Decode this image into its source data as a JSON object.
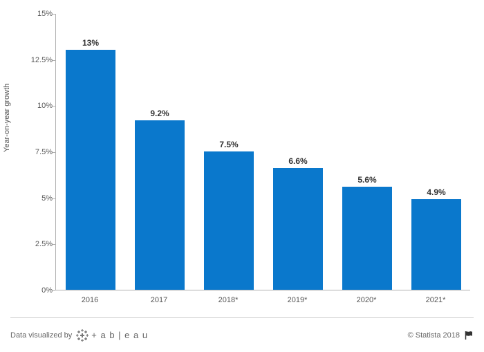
{
  "chart": {
    "type": "bar",
    "y_axis_label": "Year-on-year growth",
    "categories": [
      "2016",
      "2017",
      "2018*",
      "2019*",
      "2020*",
      "2021*"
    ],
    "values": [
      13,
      9.2,
      7.5,
      6.6,
      5.6,
      4.9
    ],
    "value_labels": [
      "13%",
      "9.2%",
      "7.5%",
      "6.6%",
      "5.6%",
      "4.9%"
    ],
    "bar_color": "#0a78cc",
    "ylim": [
      0,
      15
    ],
    "ytick_step": 2.5,
    "y_ticks": [
      "0%",
      "2.5%",
      "5%",
      "7.5%",
      "10%",
      "12.5%",
      "15%"
    ],
    "y_tick_values": [
      0,
      2.5,
      5,
      7.5,
      10,
      12.5,
      15
    ],
    "bar_width_ratio": 0.72,
    "background_color": "#ffffff",
    "axis_color": "#b0b0b0",
    "label_fontsize": 11,
    "value_label_fontsize": 12,
    "value_label_color": "#333333",
    "tick_color": "#555555"
  },
  "footer": {
    "visualized_by": "Data visualized by",
    "tableau_text": "+ a b | e a u",
    "copyright": "© Statista 2018"
  }
}
